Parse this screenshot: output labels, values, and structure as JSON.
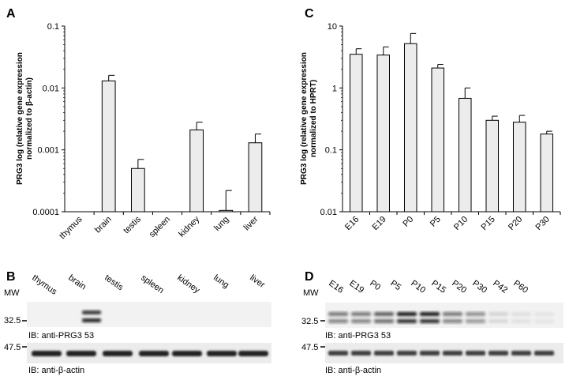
{
  "panels": {
    "A": "A",
    "B": "B",
    "C": "C",
    "D": "D"
  },
  "chart_data": [
    {
      "panel": "A",
      "type": "bar",
      "scale": "log",
      "ylabel_line1": "PRG3 log (relative gene expression",
      "ylabel_line2": "normalized to β-actin)",
      "xlabel": "",
      "ylim": [
        0.0001,
        0.1
      ],
      "yticks": [
        0.1,
        0.01,
        0.001,
        0.0001
      ],
      "ytick_labels": [
        "0.1",
        "0.01",
        "0.001",
        "0.0001"
      ],
      "categories": [
        "thymus",
        "brain",
        "testis",
        "spleen",
        "kidney",
        "lung",
        "liver"
      ],
      "values": [
        null,
        0.013,
        0.0005,
        null,
        0.0021,
        0.000105,
        0.0013
      ],
      "errors_upper": [
        null,
        0.016,
        0.0007,
        null,
        0.0028,
        0.00022,
        0.0018
      ],
      "bar_color": "#ececec"
    },
    {
      "panel": "C",
      "type": "bar",
      "scale": "log",
      "ylabel_line1": "PRG3 log (relative gene expression",
      "ylabel_line2": "normalized to HPRT)",
      "xlabel": "",
      "ylim": [
        0.01,
        10
      ],
      "yticks": [
        10,
        1,
        0.1,
        0.01
      ],
      "ytick_labels": [
        "10",
        "1",
        "0.1",
        "0.01"
      ],
      "categories": [
        "E16",
        "E19",
        "P0",
        "P5",
        "P10",
        "P15",
        "P20",
        "P30"
      ],
      "values": [
        3.5,
        3.4,
        5.2,
        2.1,
        0.68,
        0.3,
        0.28,
        0.18
      ],
      "errors_upper": [
        4.3,
        4.6,
        7.6,
        2.4,
        1.0,
        0.35,
        0.36,
        0.2
      ],
      "bar_color": "#ececec"
    }
  ],
  "blot_B": {
    "mw_header": "MW",
    "lanes": [
      "thymus",
      "brain",
      "testis",
      "spleen",
      "kidney",
      "lung",
      "liver"
    ],
    "mw1": "32.5",
    "mw2": "47.5",
    "label1": "IB: anti-PRG3 53",
    "label2": "IB: anti-β-actin"
  },
  "blot_D": {
    "mw_header": "MW",
    "lanes": [
      "E16",
      "E19",
      "P0",
      "P5",
      "P10",
      "P15",
      "P20",
      "P30",
      "P42",
      "P60"
    ],
    "mw1": "32.5",
    "mw2": "47.5",
    "label1": "IB: anti-PRG3 53",
    "label2": "IB: anti-β-actin"
  }
}
